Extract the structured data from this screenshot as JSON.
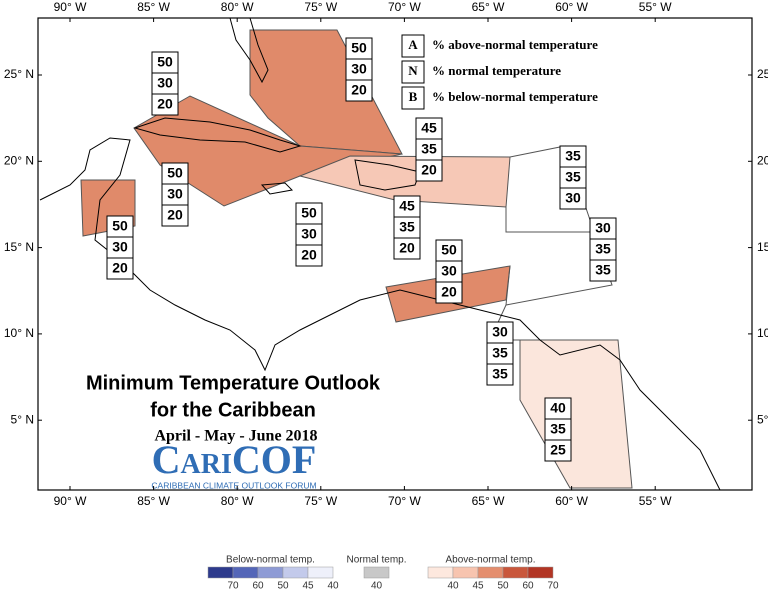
{
  "map": {
    "lon_labels": [
      "90° W",
      "85° W",
      "80° W",
      "75° W",
      "70° W",
      "65° W",
      "60° W",
      "55° W"
    ],
    "lat_labels": [
      "25° N",
      "20° N",
      "15° N",
      "10° N",
      "5° N"
    ]
  },
  "title": {
    "line1": "Minimum Temperature Outlook",
    "line2": "for the Caribbean",
    "period": "April - May - June 2018"
  },
  "logo": {
    "name": "CariCOF",
    "tagline": "CARIBBEAN CLIMATE OUTLOOK FORUM"
  },
  "key": [
    {
      "letter": "A",
      "text": "% above-normal temperature"
    },
    {
      "letter": "N",
      "text": "% normal temperature"
    },
    {
      "letter": "B",
      "text": "% below-normal temperature"
    }
  ],
  "regions": [
    {
      "above": 50,
      "normal": 30,
      "below": 20
    },
    {
      "above": 50,
      "normal": 30,
      "below": 20
    },
    {
      "above": 50,
      "normal": 30,
      "below": 20
    },
    {
      "above": 50,
      "normal": 30,
      "below": 20
    },
    {
      "above": 50,
      "normal": 30,
      "below": 20
    },
    {
      "above": 45,
      "normal": 35,
      "below": 20
    },
    {
      "above": 45,
      "normal": 35,
      "below": 20
    },
    {
      "above": 35,
      "normal": 35,
      "below": 30
    },
    {
      "above": 30,
      "normal": 35,
      "below": 35
    },
    {
      "above": 50,
      "normal": 30,
      "below": 20
    },
    {
      "above": 30,
      "normal": 35,
      "below": 35
    },
    {
      "above": 40,
      "normal": 35,
      "below": 25
    }
  ],
  "legend": {
    "below": {
      "title": "Below-normal temp.",
      "ticks": [
        70,
        60,
        50,
        45,
        40
      ]
    },
    "normal": {
      "title": "Normal temp.",
      "ticks": [
        40
      ]
    },
    "above": {
      "title": "Above-normal temp.",
      "ticks": [
        40,
        45,
        50,
        60,
        70
      ]
    }
  }
}
